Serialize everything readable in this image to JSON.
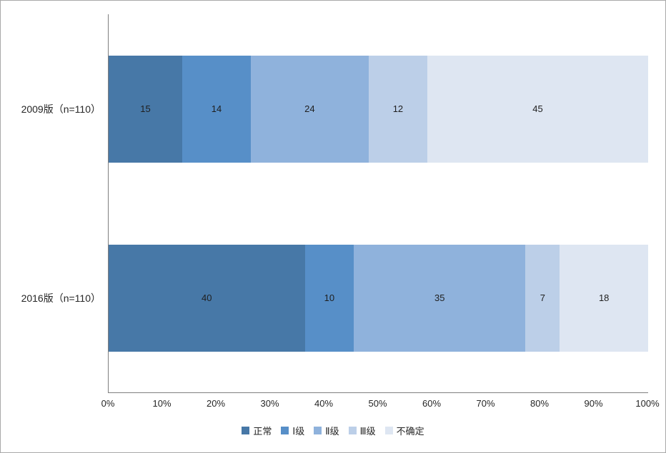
{
  "chart_data": {
    "type": "bar",
    "variant": "horizontal-stacked",
    "title": "",
    "xlabel": "",
    "ylabel": "",
    "grid": false,
    "legend_position": "bottom",
    "data_labels": true,
    "categories": [
      "2009版（n=110）",
      "2016版（n=110）"
    ],
    "series": [
      {
        "name": "正常",
        "color": "#4778a7",
        "values": [
          15,
          40
        ]
      },
      {
        "name": "Ⅰ级",
        "color": "#578fc8",
        "values": [
          14,
          10
        ]
      },
      {
        "name": "Ⅱ级",
        "color": "#8fb2dc",
        "values": [
          24,
          35
        ]
      },
      {
        "name": "Ⅲ级",
        "color": "#bccfe8",
        "values": [
          12,
          7
        ]
      },
      {
        "name": "不确定",
        "color": "#dee6f2",
        "values": [
          45,
          18
        ]
      }
    ],
    "category_totals": [
      110,
      110
    ],
    "xlim": [
      0,
      100
    ],
    "x_ticks": [
      "0%",
      "10%",
      "20%",
      "30%",
      "40%",
      "50%",
      "60%",
      "70%",
      "80%",
      "90%",
      "100%"
    ]
  }
}
